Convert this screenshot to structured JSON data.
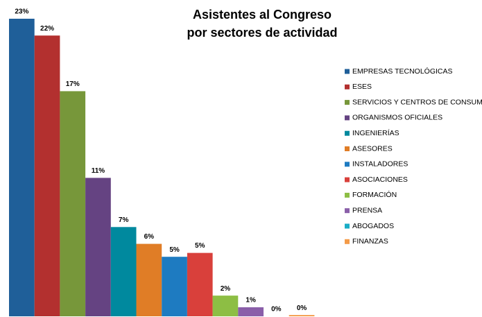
{
  "chart_data": {
    "type": "bar",
    "title": [
      "Asistentes al Congreso",
      "por sectores de actividad"
    ],
    "categories": [
      "EMPRESAS TECNOLÓGICAS",
      "ESES",
      "SERVICIOS Y CENTROS DE CONSUMO",
      "ORGANISMOS OFICIALES",
      "INGENIERÍAS",
      "ASESORES",
      "INSTALADORES",
      "ASOCIACIONES",
      "FORMACIÓN",
      "PRENSA",
      "ABOGADOS",
      "FINANZAS"
    ],
    "values": [
      23,
      21.7,
      17.4,
      10.7,
      6.9,
      5.6,
      4.6,
      4.9,
      1.6,
      0.7,
      0,
      0.1
    ],
    "value_labels": [
      "23%",
      "22%",
      "17%",
      "11%",
      "7%",
      "6%",
      "5%",
      "5%",
      "2%",
      "1%",
      "0%",
      "0%"
    ],
    "colors": [
      "#1f5f99",
      "#b3302f",
      "#77973a",
      "#654382",
      "#00899e",
      "#e07d26",
      "#1e7bc1",
      "#d9403b",
      "#8dbe44",
      "#8a5fa9",
      "#1aadc6",
      "#f49b48"
    ],
    "ylim": [
      0,
      23
    ],
    "legend": "right"
  }
}
